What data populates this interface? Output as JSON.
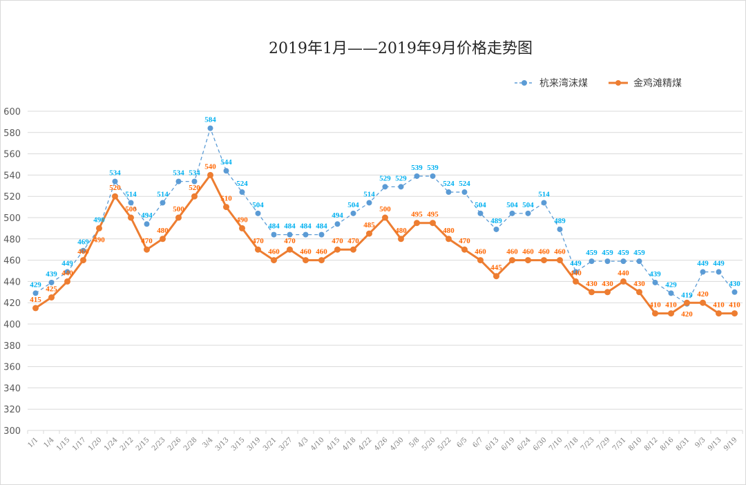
{
  "chart_data": {
    "type": "line",
    "title": "2019年1月——2019年9月价格走势图",
    "categories": [
      "1/1",
      "1/4",
      "1/15",
      "1/17",
      "1/20",
      "1/24",
      "2/12",
      "2/15",
      "2/23",
      "2/26",
      "2/28",
      "3/4",
      "3/13",
      "3/15",
      "3/19",
      "3/21",
      "3/27",
      "4/3",
      "4/10",
      "4/15",
      "4/18",
      "4/22",
      "4/26",
      "4/30",
      "5/8",
      "5/20",
      "5/22",
      "6/5",
      "6/7",
      "6/13",
      "6/19",
      "6/24",
      "6/30",
      "7/10",
      "7/18",
      "7/23",
      "7/29",
      "7/31",
      "8/10",
      "8/12",
      "8/16",
      "8/31",
      "9/3",
      "9/13",
      "9/19"
    ],
    "series": [
      {
        "name": "杭来湾沫煤",
        "color": "#5b9bd5",
        "label_color": "#00b0f0",
        "style": "dashed-markers",
        "values": [
          429,
          439,
          449,
          469,
          490,
          534,
          514,
          494,
          514,
          534,
          534,
          584,
          544,
          524,
          504,
          484,
          484,
          484,
          484,
          494,
          504,
          514,
          529,
          529,
          539,
          539,
          524,
          524,
          504,
          489,
          504,
          504,
          514,
          489,
          449,
          459,
          459,
          459,
          459,
          439,
          429,
          419,
          449,
          449,
          430
        ]
      },
      {
        "name": "金鸡滩精煤",
        "color": "#ed7d31",
        "label_color": "#ff6600",
        "style": "solid-markers",
        "values": [
          415,
          425,
          440,
          460,
          490,
          520,
          500,
          470,
          480,
          500,
          520,
          540,
          510,
          490,
          470,
          460,
          470,
          460,
          460,
          470,
          470,
          485,
          500,
          480,
          495,
          495,
          480,
          470,
          460,
          445,
          460,
          460,
          460,
          460,
          440,
          430,
          430,
          440,
          430,
          410,
          410,
          420,
          420,
          410,
          410
        ]
      }
    ],
    "ylim": [
      300,
      600
    ],
    "yticks": [
      300,
      320,
      340,
      360,
      380,
      400,
      420,
      440,
      460,
      480,
      500,
      520,
      540,
      560,
      580,
      600
    ],
    "grid": true,
    "legend": "top-right"
  }
}
